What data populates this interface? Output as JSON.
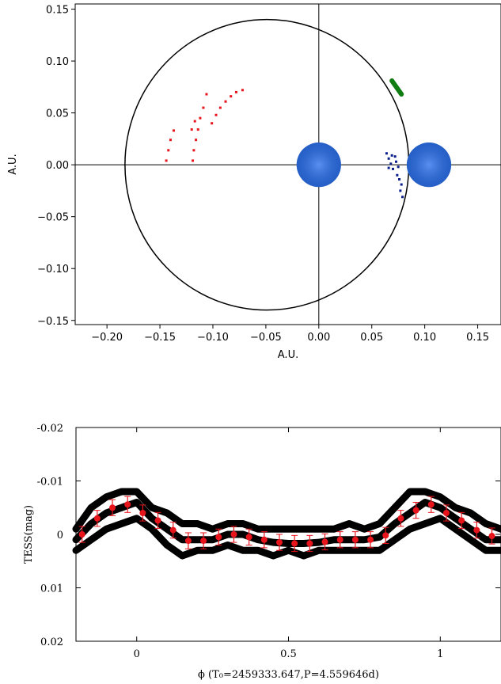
{
  "chart_data": [
    {
      "type": "orbit",
      "xlabel": "A.U.",
      "ylabel": "A.U.",
      "xlim": [
        -0.23,
        0.172
      ],
      "ylim": [
        -0.154,
        0.155
      ],
      "xticks": [
        {
          "value": -0.2,
          "label": "−0.20"
        },
        {
          "value": -0.15,
          "label": "−0.15"
        },
        {
          "value": -0.1,
          "label": "−0.10"
        },
        {
          "value": -0.05,
          "label": "−0.05"
        },
        {
          "value": 0,
          "label": "0.00"
        },
        0.05,
        {
          "value": 0.1,
          "label": "0.10"
        },
        0.15
      ],
      "yticks": [
        {
          "value": -0.15,
          "label": "−0.15"
        },
        {
          "value": -0.1,
          "label": "−0.10"
        },
        {
          "value": -0.05,
          "label": "−0.05"
        },
        {
          "value": 0,
          "label": "0.00"
        },
        0.05,
        {
          "value": 0.1,
          "label": "0.10"
        },
        0.15
      ],
      "zero_lines": true,
      "orbit": {
        "center": [
          -0.049,
          0
        ],
        "rx": 0.134,
        "ry": 0.14,
        "color": "#000000"
      },
      "series": [
        {
          "style": "disk",
          "color": "#2a66d0",
          "x": [
            0,
            0.104
          ],
          "values": [
            0,
            0
          ],
          "sizes": [
            0.021,
            0.021
          ]
        },
        {
          "style": "dots",
          "color": "#e8141c",
          "x": [
            -0.144,
            -0.142,
            -0.14,
            -0.137,
            -0.119,
            -0.118,
            -0.116,
            -0.114,
            -0.112,
            -0.109,
            -0.106,
            -0.101,
            -0.097,
            -0.093,
            -0.088,
            -0.083,
            -0.078,
            -0.072,
            -0.12,
            -0.117
          ],
          "values": [
            0.004,
            0.014,
            0.024,
            0.033,
            0.004,
            0.014,
            0.024,
            0.034,
            0.045,
            0.055,
            0.068,
            0.04,
            0.048,
            0.055,
            0.061,
            0.066,
            0.07,
            0.072,
            0.034,
            0.042
          ]
        },
        {
          "style": "dots",
          "color": "#0b1f8c",
          "x": [
            0.064,
            0.066,
            0.068,
            0.07,
            0.072,
            0.066,
            0.069,
            0.073,
            0.075,
            0.076,
            0.078,
            0.079,
            0.074,
            0.077
          ],
          "values": [
            0.011,
            0.006,
            0.001,
            -0.004,
            0.008,
            -0.003,
            0.009,
            0.003,
            -0.002,
            -0.014,
            -0.019,
            -0.031,
            -0.01,
            -0.025
          ]
        },
        {
          "style": "line",
          "color": "#0f7d12",
          "x": [
            0.069,
            0.078
          ],
          "values": [
            0.081,
            0.068
          ]
        }
      ]
    },
    {
      "type": "lightcurve",
      "ylabel": "TESS(mag)",
      "xlabel": "ϕ  (T₀=2459333.647,P=4.559646d)",
      "xlim": [
        -0.2,
        1.2
      ],
      "ylim": [
        -0.02,
        0.02
      ],
      "y_inverted": true,
      "xticks": [
        0,
        0.5,
        1
      ],
      "yticks": [
        -0.02,
        -0.01,
        0,
        0.01,
        0.02
      ],
      "series": [
        {
          "style": "band",
          "color": "#000000",
          "x": [
            -0.2,
            -0.15,
            -0.1,
            -0.05,
            0,
            0.05,
            0.1,
            0.15,
            0.2,
            0.25,
            0.3,
            0.35,
            0.4,
            0.45,
            0.5,
            0.55,
            0.6,
            0.65,
            0.7,
            0.75,
            0.8,
            0.85,
            0.9,
            0.95,
            1,
            1.05,
            1.1,
            1.15,
            1.2
          ],
          "values": [
            -0.001,
            -0.005,
            -0.007,
            -0.008,
            -0.008,
            -0.005,
            -0.004,
            -0.002,
            -0.002,
            -0.001,
            -0.002,
            -0.002,
            -0.001,
            -0.001,
            -0.001,
            -0.001,
            -0.001,
            -0.001,
            -0.002,
            -0.001,
            -0.002,
            -0.005,
            -0.008,
            -0.008,
            -0.007,
            -0.005,
            -0.004,
            -0.002,
            -0.001
          ]
        },
        {
          "style": "band",
          "color": "#000000",
          "x": [
            -0.2,
            -0.15,
            -0.1,
            -0.05,
            0,
            0.05,
            0.1,
            0.15,
            0.2,
            0.25,
            0.3,
            0.35,
            0.4,
            0.45,
            0.5,
            0.55,
            0.6,
            0.65,
            0.7,
            0.75,
            0.8,
            0.85,
            0.9,
            0.95,
            1,
            1.05,
            1.1,
            1.15,
            1.2
          ],
          "values": [
            0.003,
            0.001,
            -0.001,
            -0.002,
            -0.003,
            -0.001,
            0.002,
            0.004,
            0.003,
            0.003,
            0.002,
            0.003,
            0.003,
            0.004,
            0.003,
            0.004,
            0.003,
            0.003,
            0.003,
            0.003,
            0.003,
            0.001,
            -0.001,
            -0.002,
            -0.003,
            -0.001,
            0.001,
            0.003,
            0.003
          ]
        },
        {
          "style": "band",
          "color": "#000000",
          "x": [
            -0.2,
            -0.15,
            -0.1,
            -0.05,
            0,
            0.05,
            0.1,
            0.15,
            0.2,
            0.25,
            0.3,
            0.35,
            0.4,
            0.45,
            0.5,
            0.55,
            0.6,
            0.65,
            0.7,
            0.75,
            0.8,
            0.85,
            0.9,
            0.95,
            1,
            1.05,
            1.1,
            1.15,
            1.2
          ],
          "values": [
            0.001,
            -0.002,
            -0.004,
            -0.005,
            -0.006,
            -0.003,
            -0.001,
            0.001,
            0.001,
            0.001,
            0,
            0,
            0.001,
            0.0015,
            0.0017,
            0.0017,
            0.0015,
            0.001,
            0.001,
            0.001,
            0.0005,
            -0.002,
            -0.004,
            -0.006,
            -0.005,
            -0.003,
            -0.001,
            0.001,
            0.001
          ]
        },
        {
          "style": "errorbar",
          "color": "#e8141c",
          "x": [
            -0.18,
            -0.13,
            -0.08,
            -0.03,
            0.02,
            0.07,
            0.12,
            0.17,
            0.22,
            0.27,
            0.32,
            0.37,
            0.42,
            0.47,
            0.52,
            0.57,
            0.62,
            0.67,
            0.72,
            0.77,
            0.82,
            0.87,
            0.92,
            0.97,
            1.02,
            1.07,
            1.12,
            1.17
          ],
          "values": [
            0,
            -0.003,
            -0.005,
            -0.0056,
            -0.004,
            -0.0026,
            -0.0008,
            0.0012,
            0.0012,
            0.0005,
            0,
            0.0005,
            0.001,
            0.0015,
            0.0017,
            0.0017,
            0.0014,
            0.001,
            0.001,
            0.001,
            0.0002,
            -0.003,
            -0.0045,
            -0.0056,
            -0.004,
            -0.0026,
            -0.0008,
            0.0003
          ],
          "errors": [
            0.0015,
            0.0015,
            0.0015,
            0.0015,
            0.0015,
            0.0015,
            0.0015,
            0.0015,
            0.0015,
            0.0015,
            0.0015,
            0.0015,
            0.0015,
            0.0015,
            0.0015,
            0.0015,
            0.0015,
            0.0015,
            0.0015,
            0.0015,
            0.0015,
            0.0015,
            0.0015,
            0.0015,
            0.0015,
            0.0015,
            0.0015,
            0.0015
          ]
        }
      ]
    }
  ]
}
